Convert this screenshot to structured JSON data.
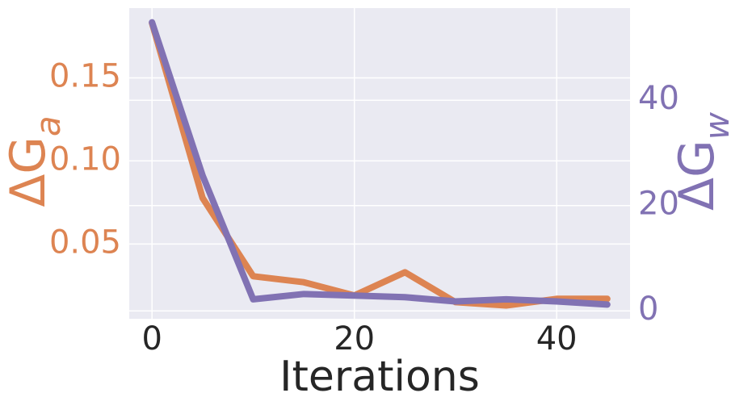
{
  "chart_data": {
    "type": "line",
    "x_label": "Iterations",
    "y_label": "ΔG",
    "y_label_subscript": "a",
    "y2_label": "ΔG",
    "y2_label_subscript": "w",
    "x": [
      0,
      5,
      10,
      15,
      20,
      25,
      30,
      35,
      40,
      45
    ],
    "series": [
      {
        "name": "ΔGa",
        "color": "#dd8452",
        "axis": "y",
        "values": [
          0.183,
          0.0777,
          0.0306,
          0.027,
          0.019,
          0.033,
          0.015,
          0.013,
          0.017,
          0.017
        ]
      },
      {
        "name": "ΔGw",
        "color": "#8172b3",
        "axis": "y2",
        "values": [
          54.8,
          25.7,
          2.2,
          3.2,
          2.9,
          2.6,
          1.8,
          2.2,
          1.8,
          1.2
        ]
      }
    ],
    "xlim": [
      -2.25,
      47.25
    ],
    "xticks": [
      0,
      20,
      40
    ],
    "ylim": [
      0.005,
      0.192
    ],
    "yticks": [
      0.05,
      {
        "value": 0.1,
        "label": "0.10"
      },
      0.15
    ],
    "y2lim": [
      -1.5,
      57.5
    ],
    "y2ticks": [
      0,
      20,
      40
    ],
    "grid": true
  }
}
